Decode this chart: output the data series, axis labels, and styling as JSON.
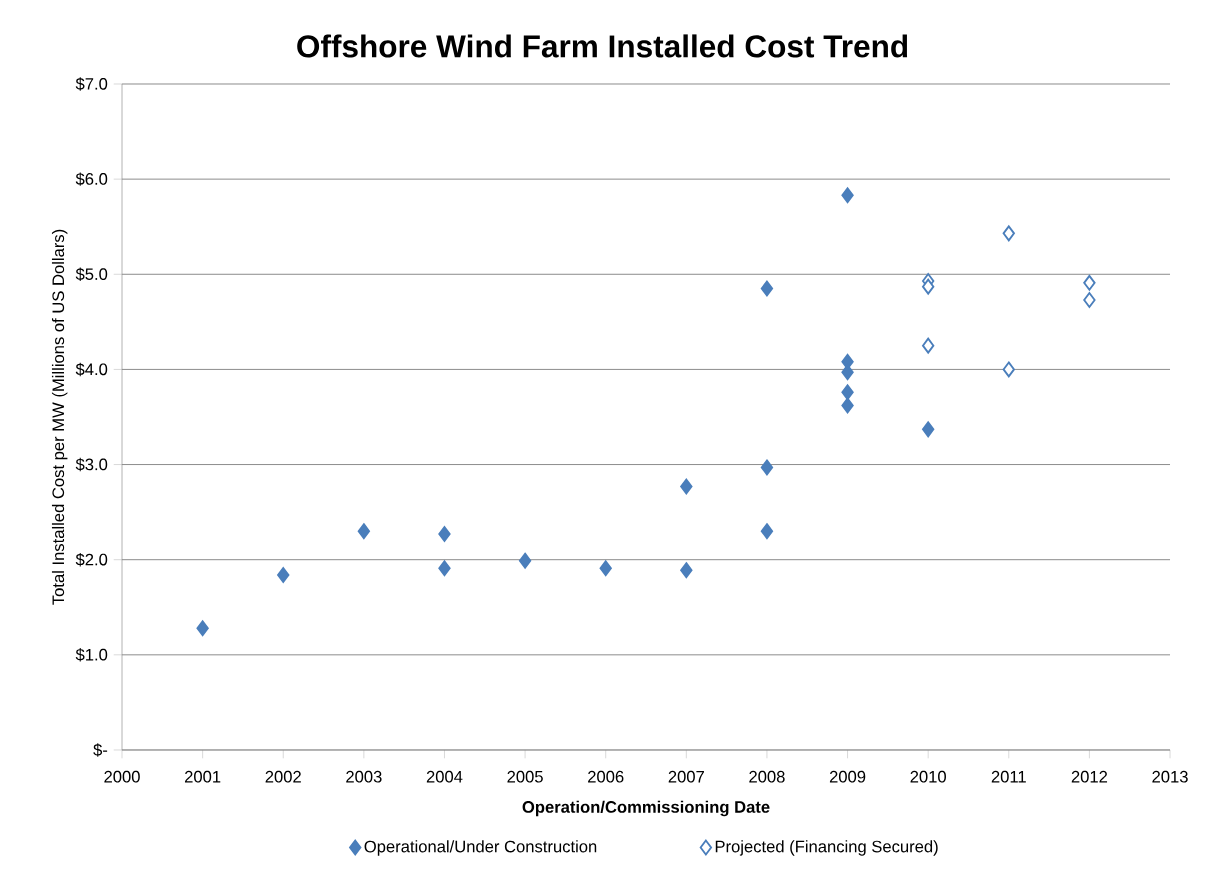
{
  "chart_data": {
    "type": "scatter",
    "title": "Offshore Wind Farm Installed Cost Trend",
    "xlabel": "Operation/Commissioning Date",
    "ylabel": "Total Installed Cost per MW (Millions of US Dollars)",
    "series": [
      {
        "name": "Operational/Under Construction",
        "color": "#4a7ebb",
        "x": [
          2001,
          2002,
          2003,
          2004,
          2004,
          2005,
          2006,
          2007,
          2007,
          2008,
          2008,
          2008,
          2009,
          2009,
          2009,
          2009,
          2009,
          2010
        ],
        "values": [
          1.28,
          1.84,
          2.3,
          2.27,
          1.91,
          1.99,
          1.91,
          2.77,
          1.89,
          4.85,
          2.97,
          2.3,
          5.83,
          4.08,
          3.97,
          3.76,
          3.62,
          3.37
        ]
      },
      {
        "name": "Projected (Financing Secured)",
        "color": "#4a7ebb",
        "x": [
          2010,
          2010,
          2010,
          2011,
          2011,
          2012,
          2012
        ],
        "values": [
          4.93,
          4.87,
          4.25,
          5.43,
          4.0,
          4.91,
          4.73
        ]
      }
    ],
    "xlim": [
      2000,
      2013
    ],
    "xticks": [
      2000,
      2001,
      2002,
      2003,
      2004,
      2005,
      2006,
      2007,
      2008,
      2009,
      2010,
      2011,
      2012,
      2013
    ],
    "ylim": [
      0,
      7
    ],
    "yticks": [
      {
        "value": 0,
        "label": "$-"
      },
      {
        "value": 1,
        "label": "$1.0"
      },
      {
        "value": 2,
        "label": "$2.0"
      },
      {
        "value": 3,
        "label": "$3.0"
      },
      {
        "value": 4,
        "label": "$4.0"
      },
      {
        "value": 5,
        "label": "$5.0"
      },
      {
        "value": 6,
        "label": "$6.0"
      },
      {
        "value": 7,
        "label": "$7.0"
      }
    ],
    "grid": "y",
    "legend": "bottom",
    "marker": "diamond"
  }
}
